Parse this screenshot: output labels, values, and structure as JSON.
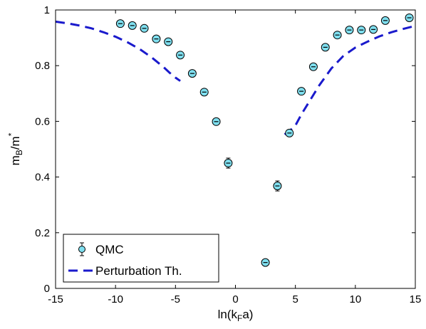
{
  "chart_data": {
    "type": "scatter",
    "title": "",
    "xlabel": {
      "base": "ln(k",
      "sub": "F",
      "tail": "a)"
    },
    "ylabel": {
      "base": "m",
      "sub": "B",
      "mid": "/m",
      "sup": "*"
    },
    "xlim": [
      -15,
      15
    ],
    "ylim": [
      0,
      1
    ],
    "xticks": [
      -15,
      -10,
      -5,
      0,
      5,
      10,
      15
    ],
    "yticks": [
      0,
      0.2,
      0.4,
      0.6,
      0.8,
      1
    ],
    "xtick_labels": [
      "-15",
      "-10",
      "-5",
      "0",
      "5",
      "10",
      "15"
    ],
    "ytick_labels": [
      "0",
      "0.2",
      "0.4",
      "0.6",
      "0.8",
      "1"
    ],
    "grid": false,
    "legend_position": "bottom-left",
    "colors": {
      "marker_fill": "#7fdfef",
      "marker_edge": "#000000",
      "curve": "#1a1acc"
    },
    "series": [
      {
        "name": "QMC",
        "kind": "errorbar",
        "x": [
          -9.6,
          -8.6,
          -7.6,
          -6.6,
          -5.6,
          -4.6,
          -3.6,
          -2.6,
          -1.6,
          -0.6,
          2.5,
          3.5,
          4.5,
          5.5,
          6.5,
          7.5,
          8.5,
          9.5,
          10.5,
          11.5,
          12.5,
          14.5
        ],
        "y": [
          0.951,
          0.944,
          0.934,
          0.896,
          0.886,
          0.838,
          0.772,
          0.705,
          0.599,
          0.45,
          0.093,
          0.368,
          0.558,
          0.708,
          0.796,
          0.866,
          0.91,
          0.928,
          0.928,
          0.93,
          0.962,
          0.972
        ],
        "err": [
          0.006,
          0.006,
          0.006,
          0.006,
          0.006,
          0.006,
          0.006,
          0.006,
          0.006,
          0.018,
          0.006,
          0.018,
          0.006,
          0.006,
          0.006,
          0.006,
          0.006,
          0.006,
          0.006,
          0.006,
          0.006,
          0.006
        ]
      },
      {
        "name": "Perturbation Th.",
        "kind": "dashed-line",
        "segments": [
          {
            "x": [
              -15,
              -14,
              -13,
              -12,
              -11,
              -10,
              -9,
              -8,
              -7,
              -6,
              -5.5,
              -5,
              -4.6
            ],
            "y": [
              0.958,
              0.952,
              0.944,
              0.934,
              0.92,
              0.904,
              0.884,
              0.86,
              0.83,
              0.795,
              0.775,
              0.757,
              0.745
            ]
          },
          {
            "x": [
              4.1,
              4.5,
              5,
              5.5,
              6,
              7,
              8,
              9,
              10,
              11,
              12,
              13,
              14,
              15
            ],
            "y": [
              0.553,
              0.565,
              0.585,
              0.625,
              0.66,
              0.73,
              0.79,
              0.835,
              0.865,
              0.886,
              0.905,
              0.92,
              0.932,
              0.943
            ]
          }
        ]
      }
    ]
  }
}
